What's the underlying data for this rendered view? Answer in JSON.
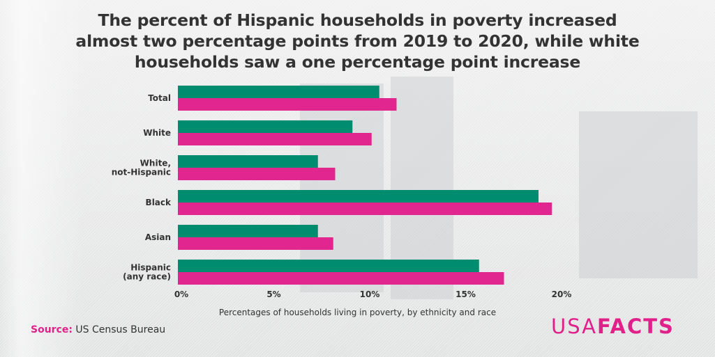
{
  "title_lines": [
    "The percent of Hispanic households in poverty increased",
    "almost two percentage points from 2019 to 2020, while white",
    "households saw a one percentage point increase"
  ],
  "source": {
    "label": "Source:",
    "text": "US Census Bureau"
  },
  "logo": {
    "part1": "USA",
    "part2": "FACTS"
  },
  "chart_data": {
    "type": "bar",
    "orientation": "horizontal",
    "categories": [
      [
        "Total"
      ],
      [
        "White"
      ],
      [
        "White,",
        "not-Hispanic"
      ],
      [
        "Black"
      ],
      [
        "Asian"
      ],
      [
        "Hispanic",
        "(any race)"
      ]
    ],
    "series": [
      {
        "color": "#008c6e",
        "values": [
          10.5,
          9.1,
          7.3,
          18.8,
          7.3,
          15.7
        ]
      },
      {
        "color": "#e2268f",
        "values": [
          11.4,
          10.1,
          8.2,
          19.5,
          8.1,
          17.0
        ]
      }
    ],
    "xlim": [
      0,
      20
    ],
    "xticks": [
      0,
      5,
      10,
      15,
      20
    ],
    "xtick_labels": [
      "0%",
      "5%",
      "10%",
      "15%",
      "20%"
    ],
    "xlabel": "Percentages of households living in poverty, by ethnicity and race",
    "ylabel": "",
    "grid": false,
    "legend": "none"
  }
}
